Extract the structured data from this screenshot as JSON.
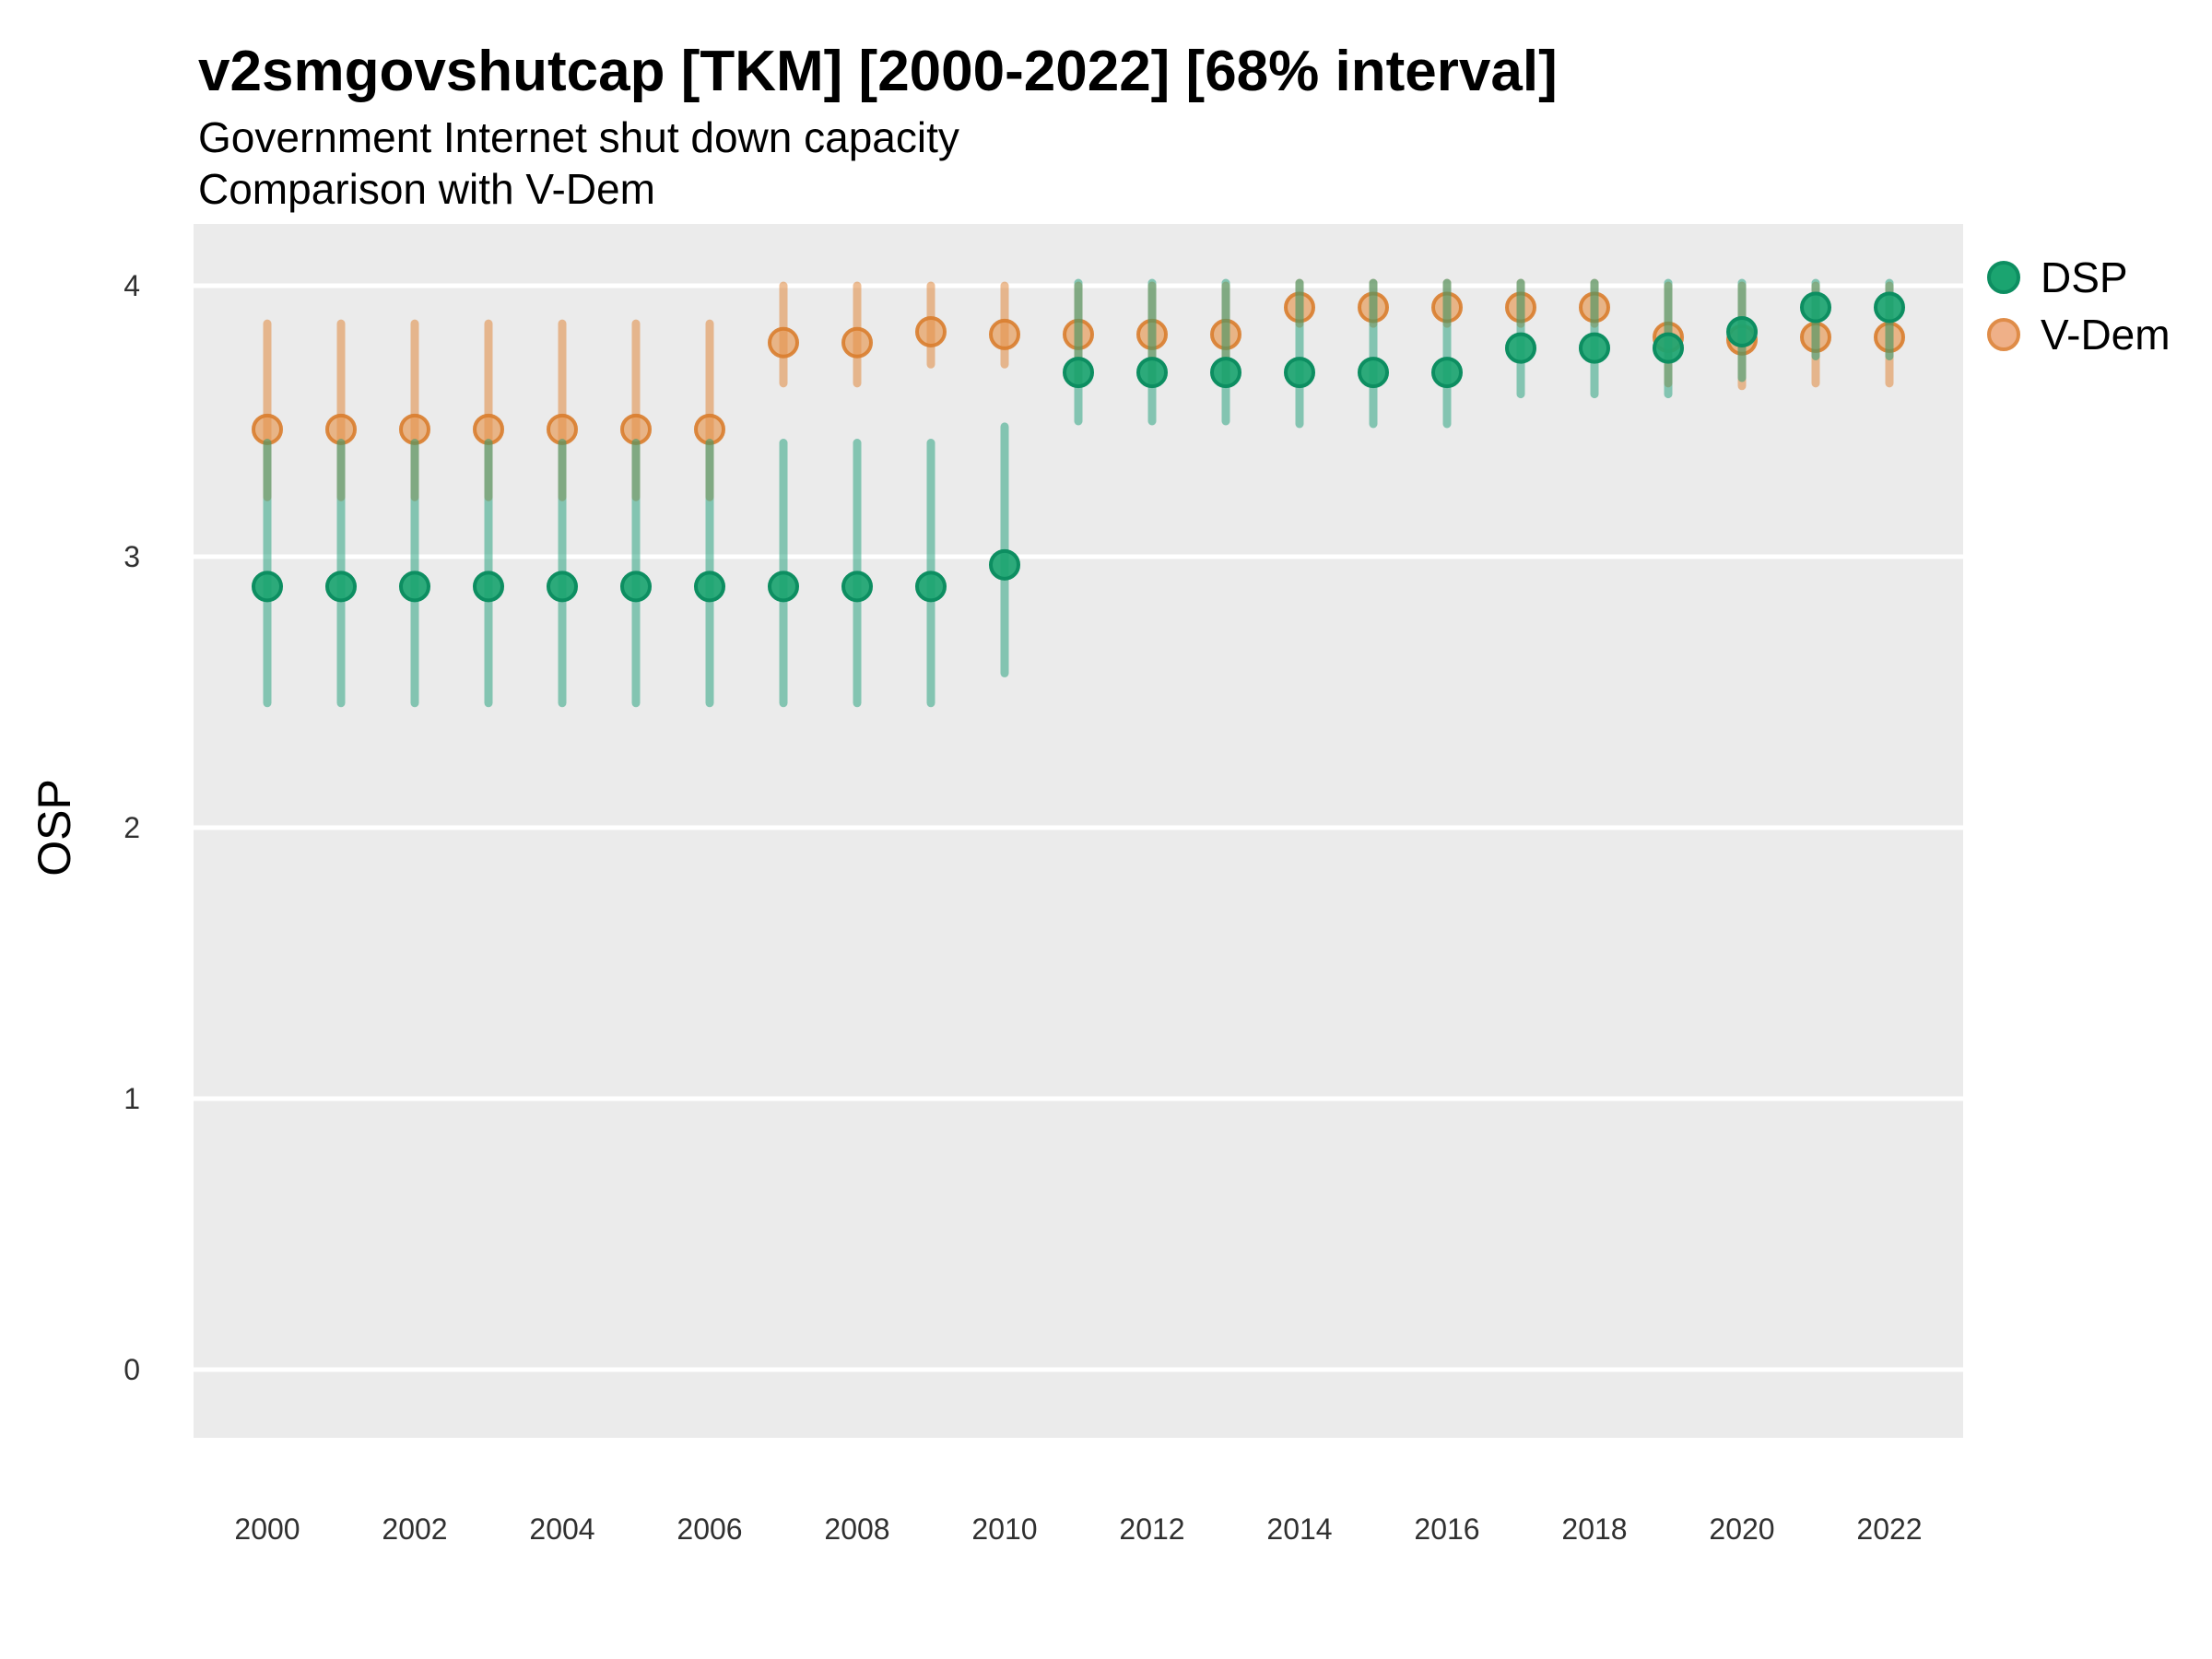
{
  "header": {
    "title": "v2smgovshutcap [TKM] [2000-2022] [68% interval]",
    "subtitle1": "Government Internet shut down capacity",
    "subtitle2": "Comparison with V-Dem"
  },
  "axes": {
    "y_label": "OSP",
    "y_ticks": [
      "4",
      "3",
      "2",
      "1",
      "0"
    ],
    "x_ticks": [
      "2000",
      "2002",
      "2004",
      "2006",
      "2008",
      "2010",
      "2012",
      "2014",
      "2016",
      "2018",
      "2020",
      "2022"
    ]
  },
  "legend": {
    "items": [
      {
        "label": "DSP",
        "series": "DSP"
      },
      {
        "label": "V-Dem",
        "series": "V-Dem"
      }
    ]
  },
  "colors": {
    "panel_bg": "#ebebeb",
    "grid": "#ffffff",
    "tick_text": "#303030",
    "dsp_line": "rgba(27,158,119,0.5)",
    "dsp_point_fill": "rgba(27,164,112,0.92)",
    "dsp_point_stroke": "#0d8e61",
    "vdem_line": "rgba(224,136,62,0.55)",
    "vdem_point_fill": "rgba(230,150,80,0.65)",
    "vdem_point_stroke": "rgba(217,125,45,0.9)",
    "legend_dsp_fill": "#1ba470",
    "legend_dsp_stroke": "#0d8e61",
    "legend_vdem_fill": "#efb088",
    "legend_vdem_stroke": "#df8c48"
  },
  "chart_data": {
    "type": "scatter",
    "title": "v2smgovshutcap [TKM] [2000-2022] [68% interval]",
    "subtitle": "Government Internet shut down capacity / Comparison with V-Dem",
    "xlabel": "",
    "ylabel": "OSP",
    "interval": "68%",
    "xlim": [
      1999,
      2023
    ],
    "ylim": [
      -0.25,
      4.23
    ],
    "x_tick_values": [
      2000,
      2002,
      2004,
      2006,
      2008,
      2010,
      2012,
      2014,
      2016,
      2018,
      2020,
      2022
    ],
    "y_tick_values": [
      0,
      1,
      2,
      3,
      4
    ],
    "grid": "major horizontal white lines on gray panel",
    "legend_position": "right-top",
    "x": [
      2000,
      2001,
      2002,
      2003,
      2004,
      2005,
      2006,
      2007,
      2008,
      2009,
      2010,
      2011,
      2012,
      2013,
      2014,
      2015,
      2016,
      2017,
      2018,
      2019,
      2020,
      2021,
      2022
    ],
    "series": [
      {
        "name": "V-Dem",
        "values": [
          3.47,
          3.47,
          3.47,
          3.47,
          3.47,
          3.47,
          3.47,
          3.79,
          3.79,
          3.83,
          3.82,
          3.82,
          3.82,
          3.82,
          3.92,
          3.92,
          3.92,
          3.92,
          3.92,
          3.81,
          3.8,
          3.81,
          3.81
        ],
        "lo": [
          3.22,
          3.22,
          3.22,
          3.22,
          3.22,
          3.22,
          3.22,
          3.64,
          3.64,
          3.71,
          3.71,
          3.64,
          3.64,
          3.64,
          3.86,
          3.86,
          3.86,
          3.86,
          3.86,
          3.64,
          3.63,
          3.64,
          3.64
        ],
        "hi": [
          3.86,
          3.86,
          3.86,
          3.86,
          3.86,
          3.86,
          3.86,
          4.0,
          4.0,
          4.0,
          4.0,
          4.0,
          4.0,
          4.0,
          4.01,
          4.01,
          4.01,
          4.01,
          4.01,
          4.0,
          4.0,
          4.0,
          4.0
        ]
      },
      {
        "name": "DSP",
        "values": [
          2.89,
          2.89,
          2.89,
          2.89,
          2.89,
          2.89,
          2.89,
          2.89,
          2.89,
          2.89,
          2.97,
          3.68,
          3.68,
          3.68,
          3.68,
          3.68,
          3.68,
          3.77,
          3.77,
          3.77,
          3.83,
          3.92,
          3.92
        ],
        "lo": [
          2.46,
          2.46,
          2.46,
          2.46,
          2.46,
          2.46,
          2.46,
          2.46,
          2.46,
          2.46,
          2.57,
          3.5,
          3.5,
          3.5,
          3.49,
          3.49,
          3.49,
          3.6,
          3.6,
          3.6,
          3.66,
          3.74,
          3.74
        ],
        "hi": [
          3.42,
          3.42,
          3.42,
          3.42,
          3.42,
          3.42,
          3.42,
          3.42,
          3.42,
          3.42,
          3.48,
          4.01,
          4.01,
          4.01,
          4.01,
          4.01,
          4.01,
          4.01,
          4.01,
          4.01,
          4.01,
          4.01,
          4.01
        ]
      }
    ]
  }
}
